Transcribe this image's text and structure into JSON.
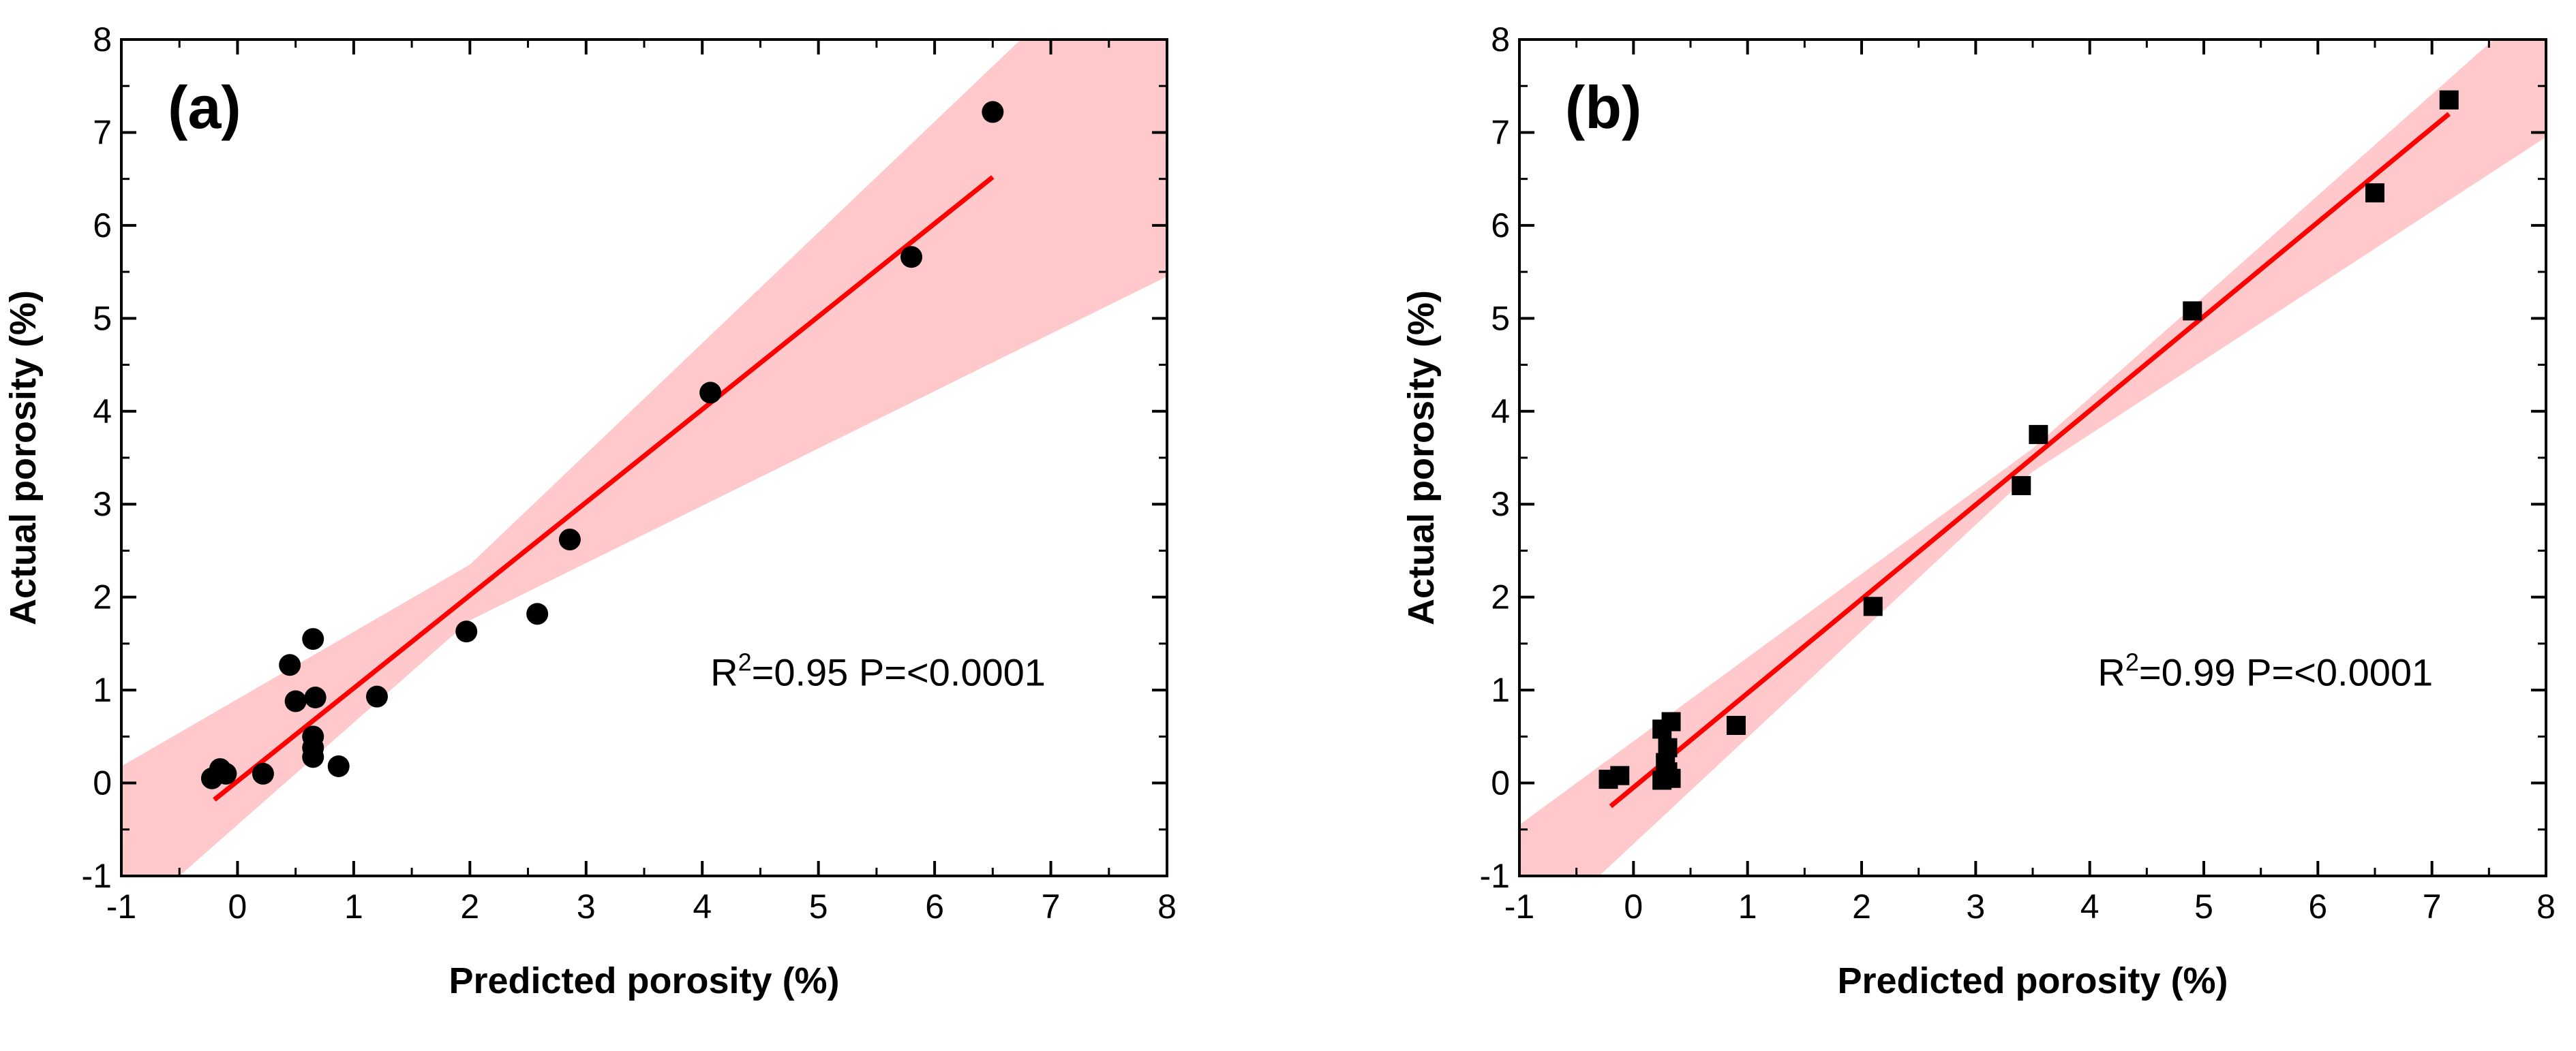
{
  "figure": {
    "description_panels": [
      "(a)",
      "(b)"
    ]
  },
  "chart_data": [
    {
      "type": "scatter",
      "panel_label": "(a)",
      "marker": "circle",
      "xlabel": "Predicted porosity (%)",
      "ylabel": "Actual porosity (%)",
      "xlim": [
        -1,
        8
      ],
      "ylim": [
        -1,
        8
      ],
      "xticks": [
        "-1",
        "0",
        "1",
        "2",
        "3",
        "4",
        "5",
        "6",
        "7",
        "8"
      ],
      "yticks": [
        "-1",
        "0",
        "1",
        "2",
        "3",
        "4",
        "5",
        "6",
        "7",
        "8"
      ],
      "series": [
        {
          "name": "data",
          "points": [
            {
              "x": -0.22,
              "y": 0.05
            },
            {
              "x": -0.15,
              "y": 0.15
            },
            {
              "x": -0.1,
              "y": 0.1
            },
            {
              "x": 0.22,
              "y": 0.1
            },
            {
              "x": 0.45,
              "y": 1.27
            },
            {
              "x": 0.5,
              "y": 0.88
            },
            {
              "x": 0.65,
              "y": 1.55
            },
            {
              "x": 0.67,
              "y": 0.92
            },
            {
              "x": 0.65,
              "y": 0.5
            },
            {
              "x": 0.65,
              "y": 0.38
            },
            {
              "x": 0.65,
              "y": 0.28
            },
            {
              "x": 0.87,
              "y": 0.18
            },
            {
              "x": 1.2,
              "y": 0.93
            },
            {
              "x": 1.97,
              "y": 1.63
            },
            {
              "x": 2.58,
              "y": 1.82
            },
            {
              "x": 2.86,
              "y": 2.62
            },
            {
              "x": 4.07,
              "y": 4.2
            },
            {
              "x": 5.8,
              "y": 5.66
            },
            {
              "x": 6.5,
              "y": 7.22
            }
          ]
        }
      ],
      "fit_line": {
        "x": [
          -0.2,
          6.5
        ],
        "y": [
          -0.18,
          6.52
        ],
        "color": "#ff0000"
      },
      "confidence_band": {
        "x": [
          -1,
          2,
          8
        ],
        "upper": [
          0.18,
          2.35,
          9.5
        ],
        "lower": [
          -1.55,
          1.75,
          5.45
        ],
        "color": "#ffc9cc"
      },
      "annotation": {
        "text_main": "R",
        "superscript": "2",
        "text_rest": "=0.95 P=<0.0001"
      }
    },
    {
      "type": "scatter",
      "panel_label": "(b)",
      "marker": "square",
      "xlabel": "Predicted porosity  (%)",
      "ylabel": "Actual porosity  (%)",
      "xlim": [
        -1,
        8
      ],
      "ylim": [
        -1,
        8
      ],
      "xticks": [
        "-1",
        "0",
        "1",
        "2",
        "3",
        "4",
        "5",
        "6",
        "7",
        "8"
      ],
      "yticks": [
        "-1",
        "0",
        "1",
        "2",
        "3",
        "4",
        "5",
        "6",
        "7",
        "8"
      ],
      "series": [
        {
          "name": "data",
          "points": [
            {
              "x": -0.22,
              "y": 0.04
            },
            {
              "x": -0.12,
              "y": 0.08
            },
            {
              "x": 0.25,
              "y": 0.58
            },
            {
              "x": 0.33,
              "y": 0.66
            },
            {
              "x": 0.3,
              "y": 0.38
            },
            {
              "x": 0.28,
              "y": 0.22
            },
            {
              "x": 0.3,
              "y": 0.12
            },
            {
              "x": 0.25,
              "y": 0.03
            },
            {
              "x": 0.33,
              "y": 0.05
            },
            {
              "x": 0.9,
              "y": 0.62
            },
            {
              "x": 2.1,
              "y": 1.9
            },
            {
              "x": 3.4,
              "y": 3.2
            },
            {
              "x": 3.55,
              "y": 3.75
            },
            {
              "x": 4.9,
              "y": 5.08
            },
            {
              "x": 6.5,
              "y": 6.35
            },
            {
              "x": 7.15,
              "y": 7.35
            }
          ]
        }
      ],
      "fit_line": {
        "x": [
          -0.2,
          7.15
        ],
        "y": [
          -0.25,
          7.2
        ],
        "color": "#ff0000"
      },
      "confidence_band": {
        "x": [
          -1,
          3.5,
          8
        ],
        "upper": [
          -0.45,
          3.6,
          8.5
        ],
        "lower": [
          -1.8,
          3.35,
          6.95
        ],
        "color": "#ffc9cc"
      },
      "annotation": {
        "text_main": "R",
        "superscript": "2",
        "text_rest": "=0.99 P=<0.0001"
      }
    }
  ]
}
